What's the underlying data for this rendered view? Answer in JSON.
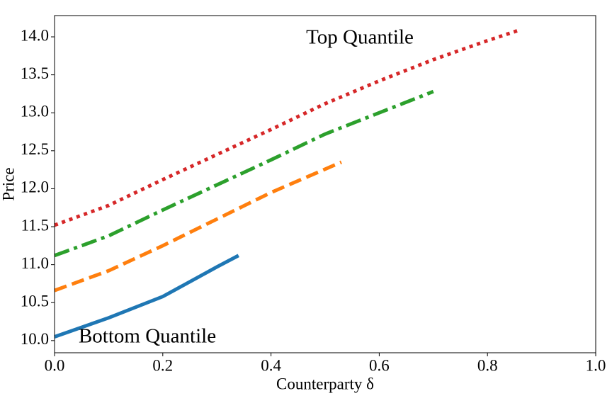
{
  "chart_data": {
    "type": "line",
    "xlabel": "Counterparty δ",
    "ylabel": "Price",
    "annotations": [
      "Top Quantile",
      "Bottom Quantile"
    ],
    "xlim": [
      0,
      1
    ],
    "ylim": [
      9.84,
      14.28
    ],
    "xticks": [
      {
        "value": 0,
        "label": "0.0"
      },
      0.2,
      0.4,
      0.6,
      0.8,
      {
        "value": 1,
        "label": "1.0"
      }
    ],
    "yticks": [
      {
        "value": 10,
        "label": "10.0"
      },
      10.5,
      {
        "value": 11,
        "label": "11.0"
      },
      11.5,
      {
        "value": 12,
        "label": "12.0"
      },
      12.5,
      {
        "value": 13,
        "label": "13.0"
      },
      13.5,
      {
        "value": 14,
        "label": "14.0"
      }
    ],
    "grid": false,
    "series": [
      {
        "color": "#1f77b4",
        "linestyle": "solid",
        "x": [
          0,
          0.1,
          0.2,
          0.3,
          0.34
        ],
        "values": [
          10.05,
          10.3,
          10.58,
          10.97,
          11.12
        ]
      },
      {
        "color": "#ff7f0e",
        "linestyle": "dashed",
        "x": [
          0,
          0.1,
          0.2,
          0.3,
          0.4,
          0.53
        ],
        "values": [
          10.66,
          10.92,
          11.25,
          11.6,
          11.95,
          12.35
        ]
      },
      {
        "color": "#2ca02c",
        "linestyle": "dashdot",
        "x": [
          0,
          0.1,
          0.2,
          0.3,
          0.4,
          0.5,
          0.6,
          0.7
        ],
        "values": [
          11.12,
          11.38,
          11.72,
          12.05,
          12.38,
          12.72,
          13.0,
          13.28
        ]
      },
      {
        "color": "#d62728",
        "linestyle": "dotted",
        "x": [
          0,
          0.1,
          0.2,
          0.3,
          0.4,
          0.5,
          0.6,
          0.7,
          0.8,
          0.855
        ],
        "values": [
          11.52,
          11.78,
          12.12,
          12.45,
          12.78,
          13.12,
          13.42,
          13.7,
          13.95,
          14.08
        ]
      }
    ]
  }
}
